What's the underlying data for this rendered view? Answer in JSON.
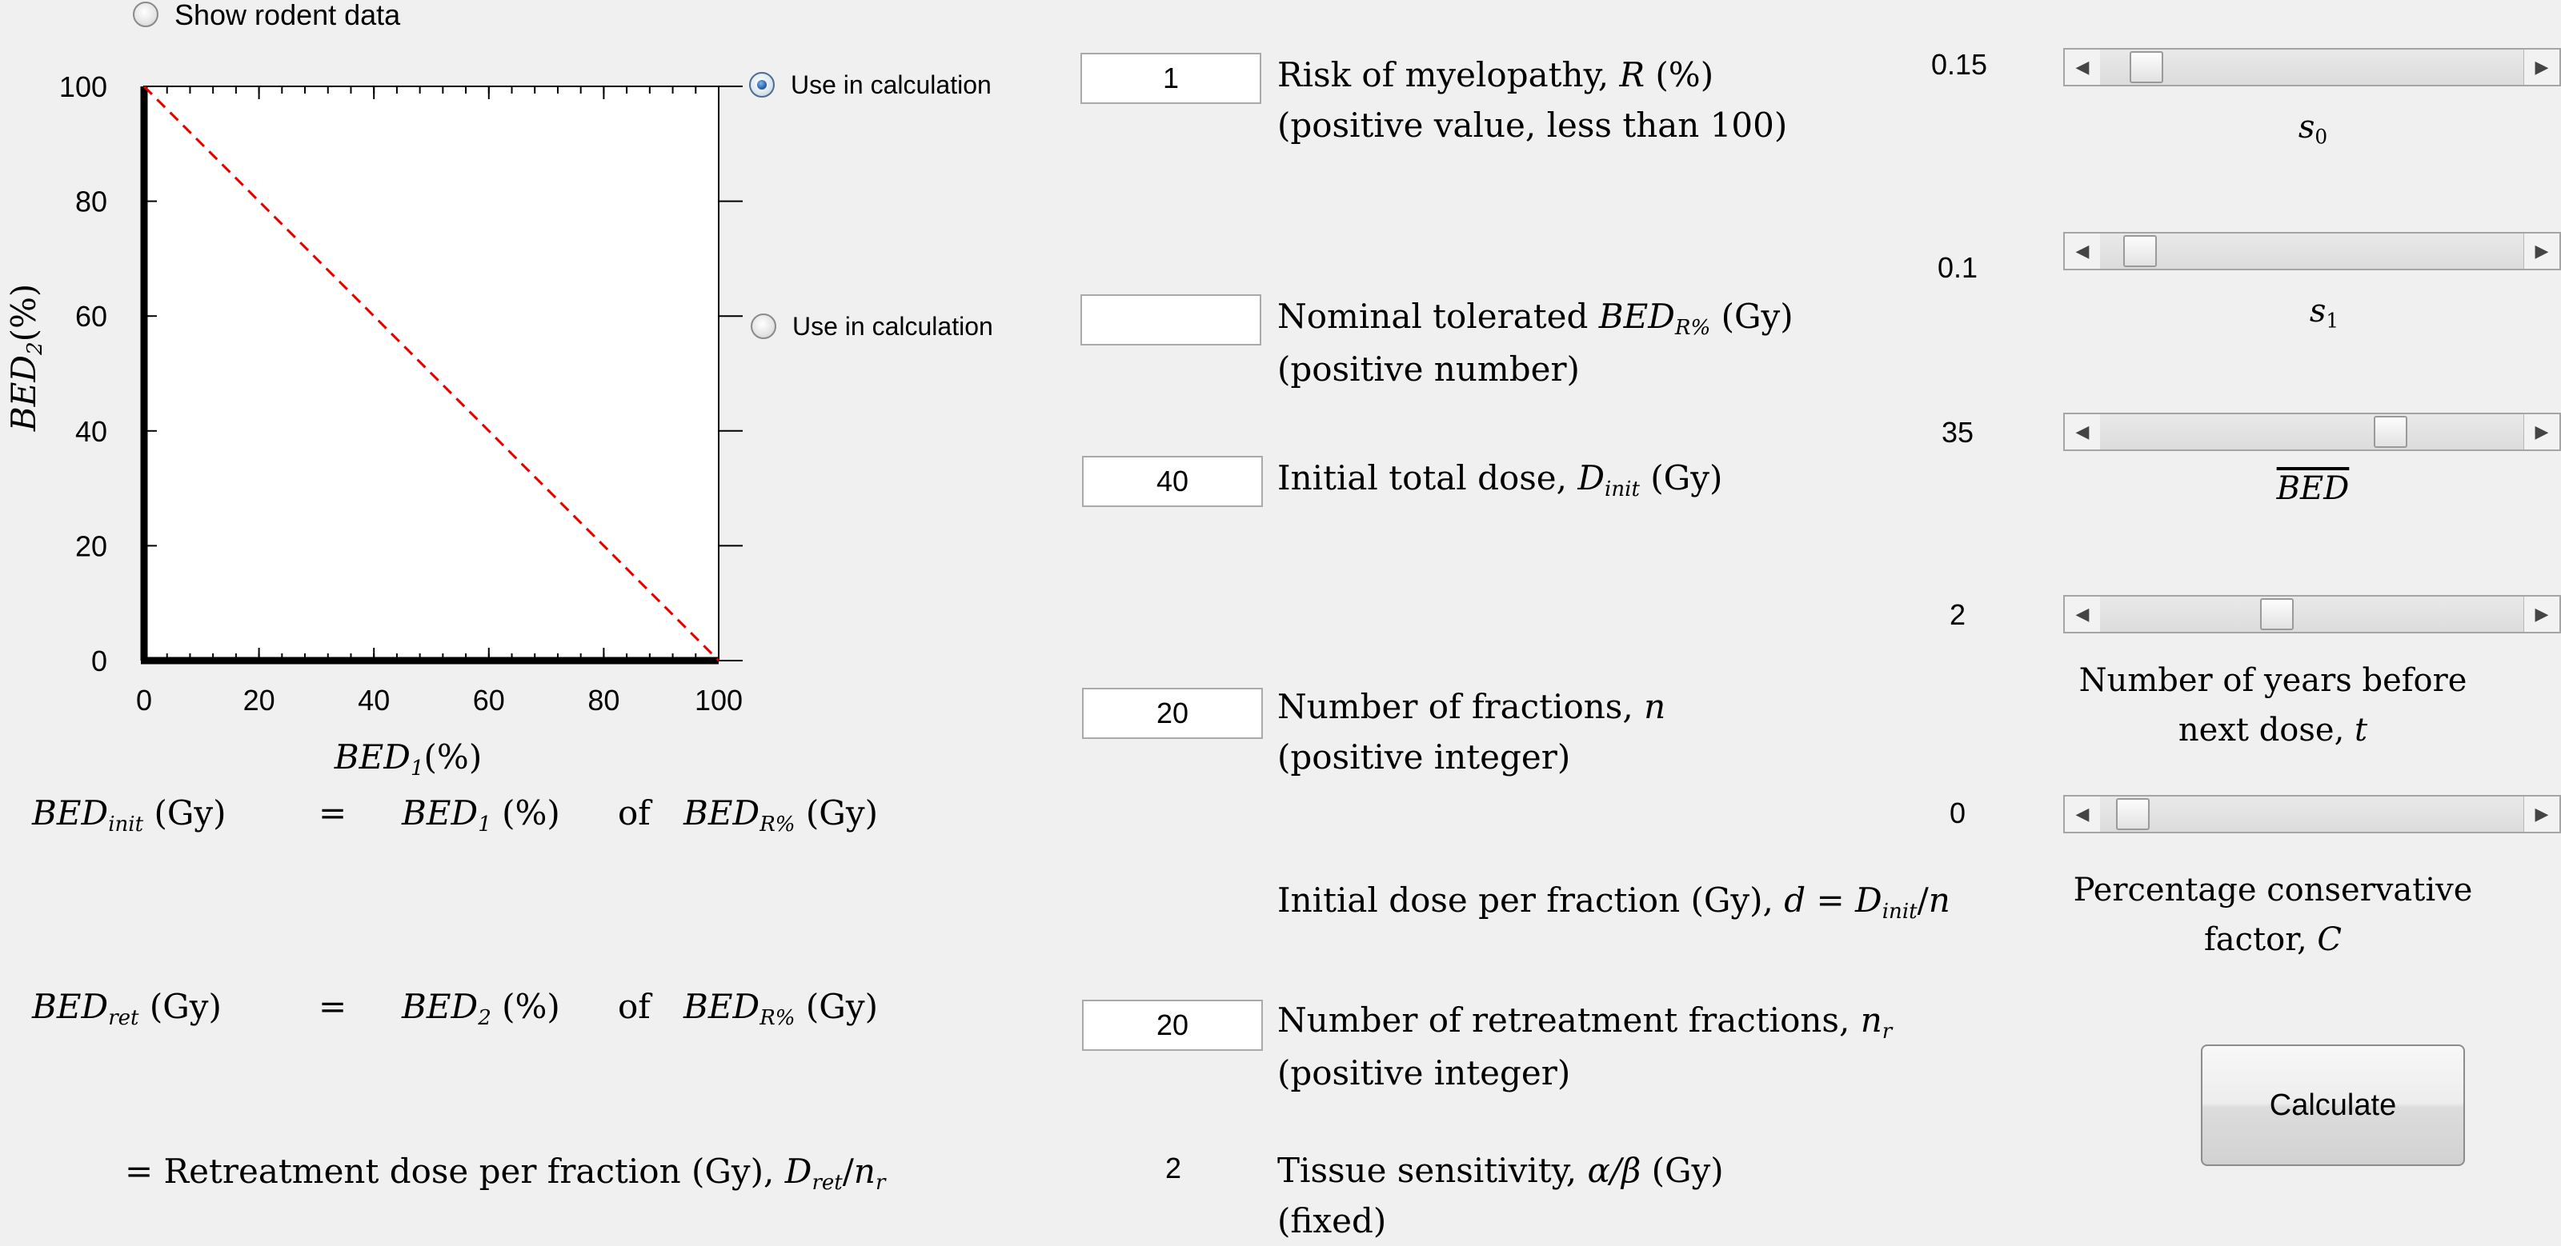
{
  "rodent": {
    "label": "Show rodent data",
    "selected": false
  },
  "plot": {
    "ylabel_main": "BED",
    "ylabel_sub": "2",
    "ylabel_unit": "(%)",
    "xlabel_main": "BED",
    "xlabel_sub": "1",
    "xlabel_unit": "(%)",
    "y_ticks": [
      "100",
      "80",
      "60",
      "40",
      "20",
      "0"
    ],
    "x_ticks": [
      "0",
      "20",
      "40",
      "60",
      "80",
      "100"
    ],
    "line_color": "#e00000"
  },
  "chart_data": {
    "type": "line",
    "xlim": [
      0,
      100
    ],
    "ylim": [
      0,
      100
    ],
    "x_ticks": [
      0,
      20,
      40,
      60,
      80,
      100
    ],
    "y_ticks": [
      0,
      20,
      40,
      60,
      80,
      100
    ],
    "xlabel": "BED1(%)",
    "ylabel": "BED2(%)",
    "series": [
      {
        "style": "dashed",
        "color": "#e00000",
        "x": [
          0,
          100
        ],
        "y": [
          100,
          0
        ]
      }
    ],
    "grid": false
  },
  "use_calc": [
    {
      "label": "Use in calculation",
      "selected": true
    },
    {
      "label": "Use in calculation",
      "selected": false
    }
  ],
  "inputs": {
    "risk": {
      "value": "1",
      "label_prefix": "Risk of myelopathy, ",
      "label_var": "R",
      "label_suffix": " (%)",
      "hint": "(positive value, less than 100)"
    },
    "bed": {
      "value": "",
      "label_prefix": "Nominal tolerated ",
      "label_var": "BED",
      "label_sub": "R%",
      "label_suffix": " (Gy)",
      "hint": "(positive number)"
    },
    "dinit": {
      "value": "40",
      "label_prefix": "Initial total dose, ",
      "label_var": "D",
      "label_sub": "init",
      "label_suffix": " (Gy)"
    },
    "n": {
      "value": "20",
      "label_prefix": "Number of fractions, ",
      "label_var": "n",
      "hint": "(positive integer)"
    },
    "nr": {
      "value": "20",
      "label_prefix": "Number of retreatment fractions, ",
      "label_var": "n",
      "label_sub": "r",
      "hint": "(positive integer)"
    }
  },
  "dose_per_fraction": {
    "prefix": "Initial dose per fraction (Gy), ",
    "d": "d",
    "eq": " = ",
    "D": "D",
    "Dsub": "init",
    "slash": "/",
    "n": "n"
  },
  "tissue": {
    "value": "2",
    "label_prefix": "Tissue sensitivity, ",
    "label_var": "α/β",
    "label_suffix": " (Gy)",
    "hint": "(fixed)"
  },
  "sliders": {
    "s0": {
      "value": "0.15",
      "label": "s",
      "label_sub": "0",
      "position": 0.075
    },
    "s1": {
      "value": "0.1",
      "label": "s",
      "label_sub": "1",
      "position": 0.06
    },
    "bedbar": {
      "value": "35",
      "label": "BED",
      "position": 0.7
    },
    "t": {
      "value": "2",
      "label_line1": "Number of years before",
      "label_line2": "next dose, ",
      "label_var": "t",
      "position": 0.41
    },
    "c": {
      "value": "0",
      "label_line1": "Percentage conservative",
      "label_line2": "factor, ",
      "label_var": "C",
      "position": 0.04
    }
  },
  "equations": {
    "row1": {
      "lhs": "BED",
      "lhs_sub": "init",
      "unit": "(Gy)",
      "eq": "=",
      "mid": "BED",
      "mid_sub": "1",
      "mid_unit": "(%)",
      "of": "of",
      "rhs": "BED",
      "rhs_sub": "R%",
      "rhs_unit": "(Gy)"
    },
    "row2": {
      "lhs": "BED",
      "lhs_sub": "ret",
      "unit": "(Gy)",
      "eq": "=",
      "mid": "BED",
      "mid_sub": "2",
      "mid_unit": "(%)",
      "of": "of",
      "rhs": "BED",
      "rhs_sub": "R%",
      "rhs_unit": "(Gy)"
    },
    "row3": {
      "prefix": "= Retreatment dose per fraction (Gy), ",
      "var": "D",
      "var_sub": "ret",
      "slash": "/",
      "n": "n",
      "n_sub": "r"
    }
  },
  "calculate_label": "Calculate"
}
